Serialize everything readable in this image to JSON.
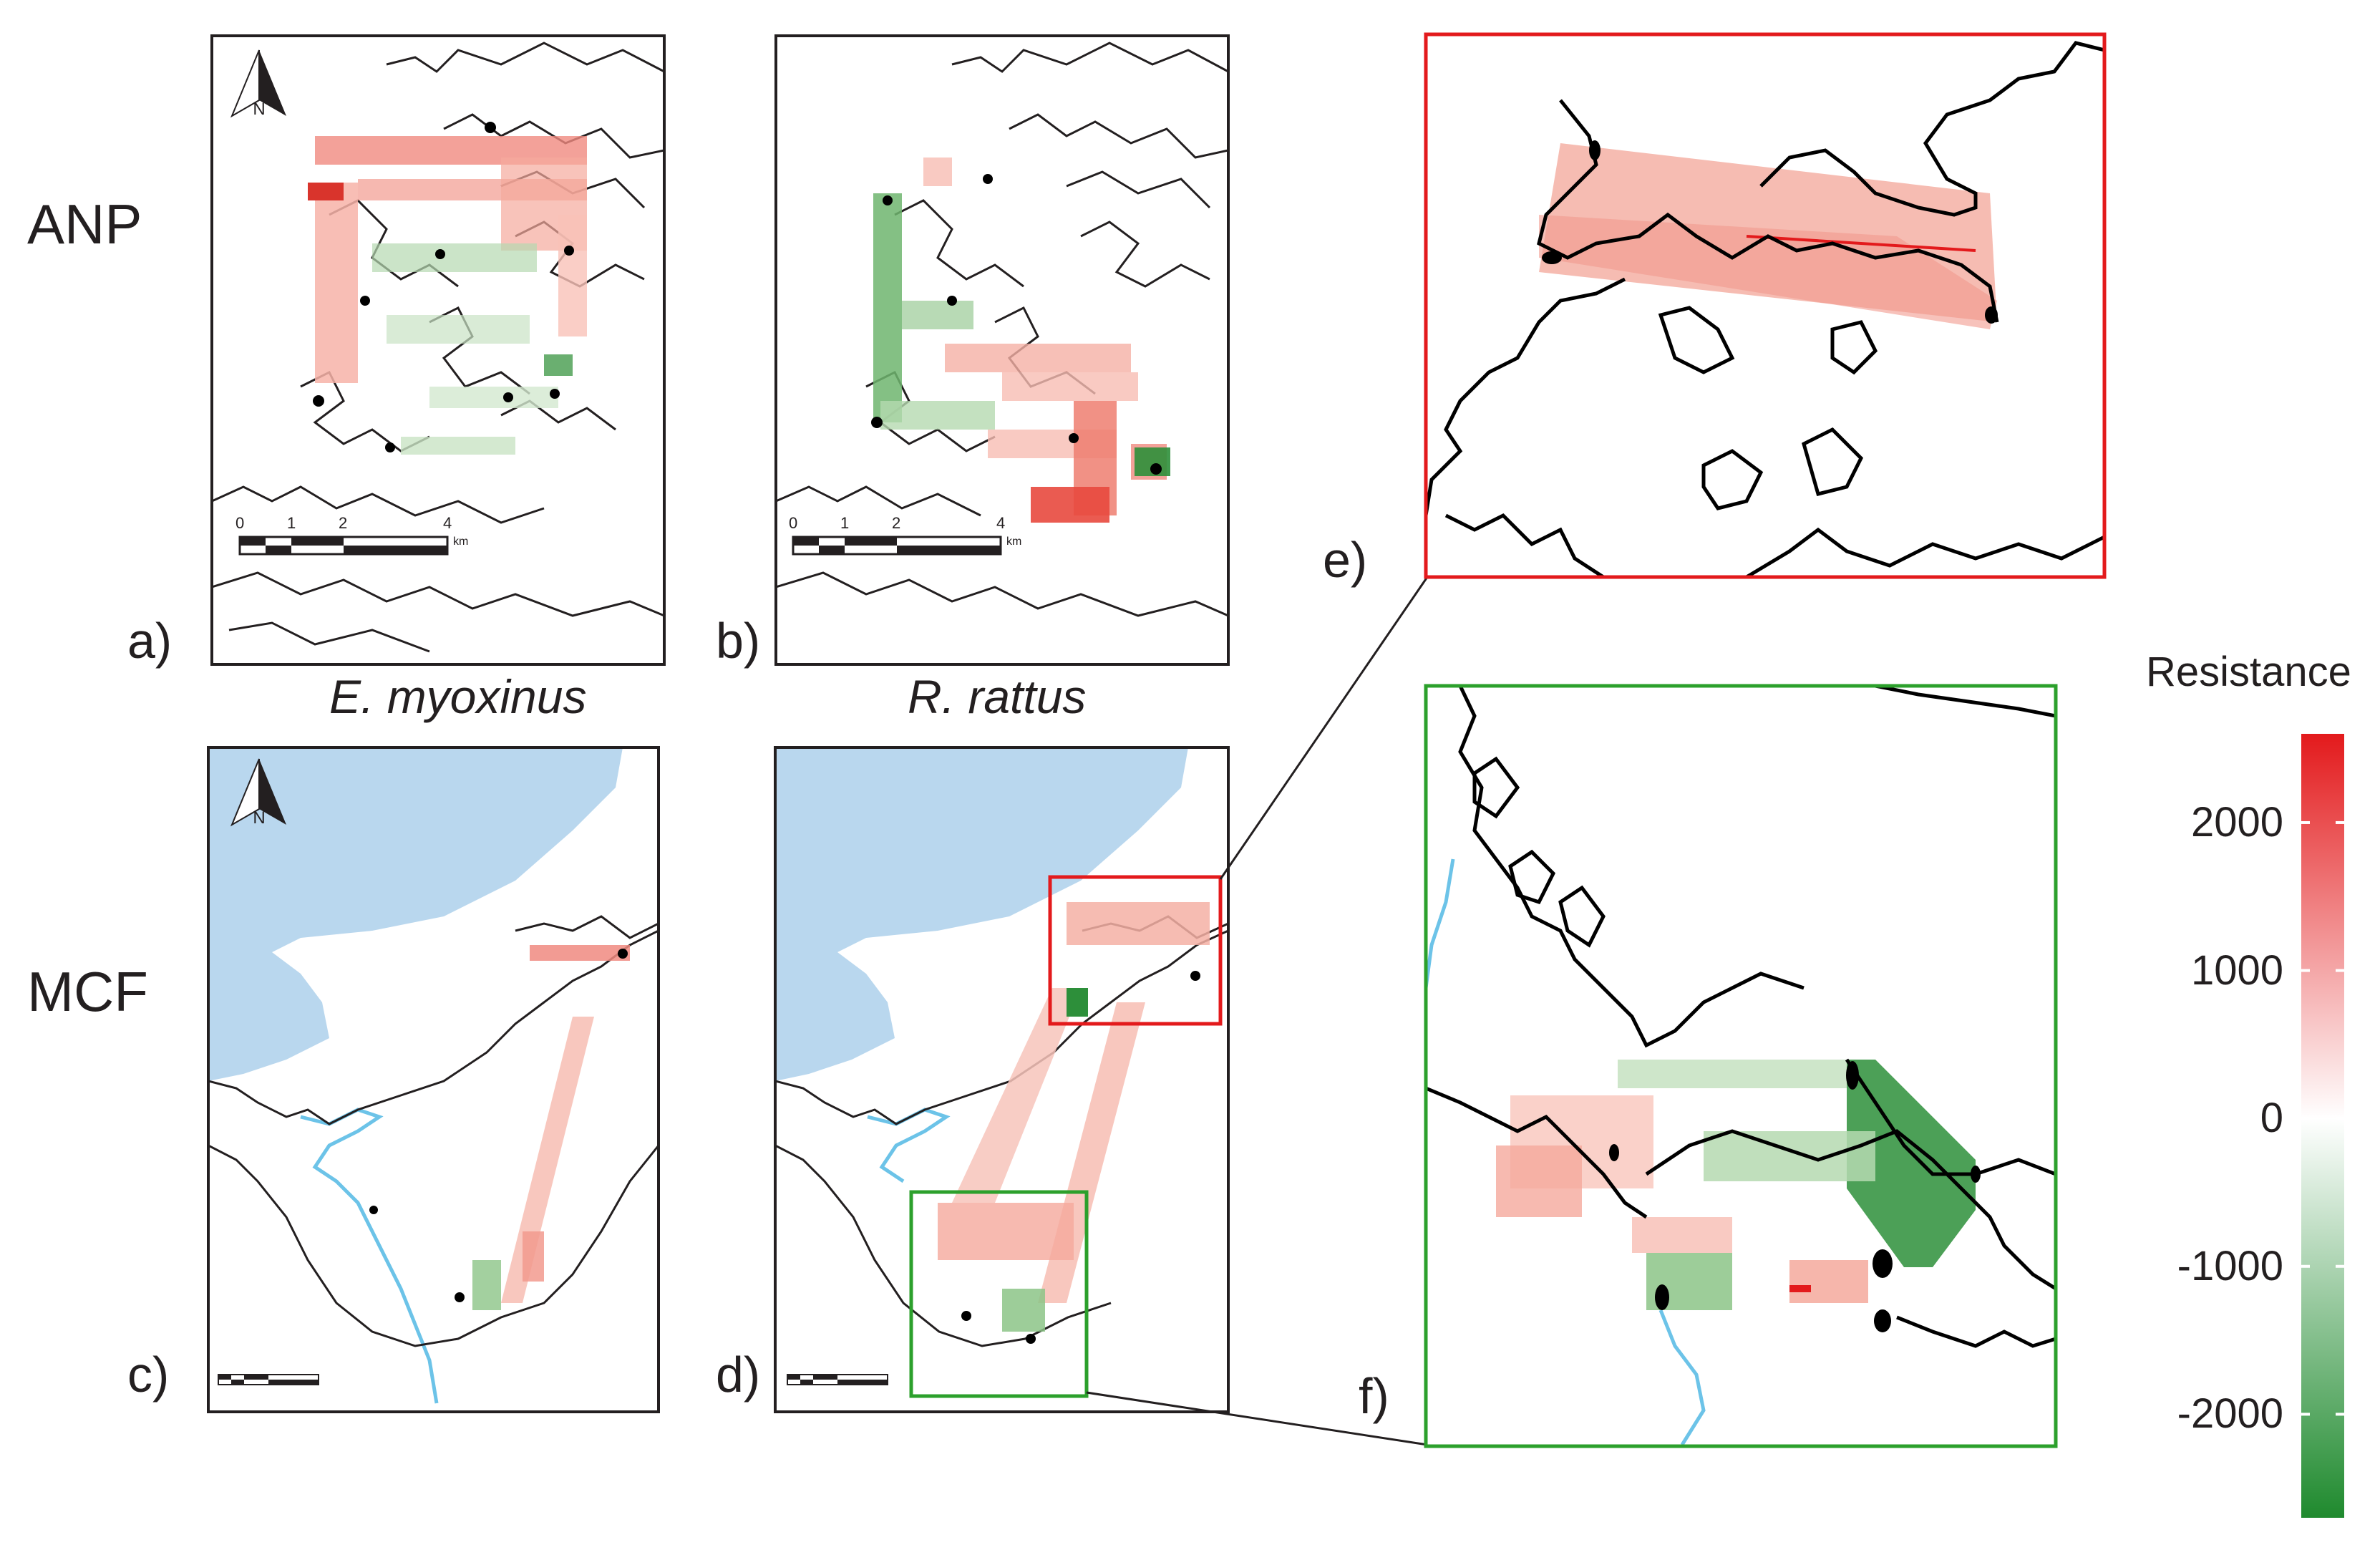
{
  "row_labels": [
    "ANP",
    "MCF"
  ],
  "panel_labels": [
    "a)",
    "b)",
    "c)",
    "d)",
    "e)",
    "f)"
  ],
  "species_labels": [
    "E. myoxinus",
    "R. rattus"
  ],
  "scale_bar": {
    "ticks": [
      "0",
      "1",
      "2",
      "4"
    ],
    "unit": "km"
  },
  "north_arrow": {
    "letter": "N",
    "icon": "north-arrow-icon"
  },
  "legend": {
    "title": "Resistance",
    "ticks": [
      "2000",
      "1000",
      "0",
      "-1000",
      "-2000"
    ],
    "tick_values": [
      2000,
      1000,
      0,
      -1000,
      -2000
    ],
    "range": [
      -2700,
      2600
    ],
    "colors": {
      "high": "#e31a1c",
      "mid": "#ffffff",
      "low": "#1f8a2e"
    }
  },
  "colors": {
    "water": "#b9d7ee",
    "river": "#6cc3e8",
    "inset_e_border": "#e31a1c",
    "inset_f_border": "#2ca02c",
    "frame": "#231f20"
  }
}
